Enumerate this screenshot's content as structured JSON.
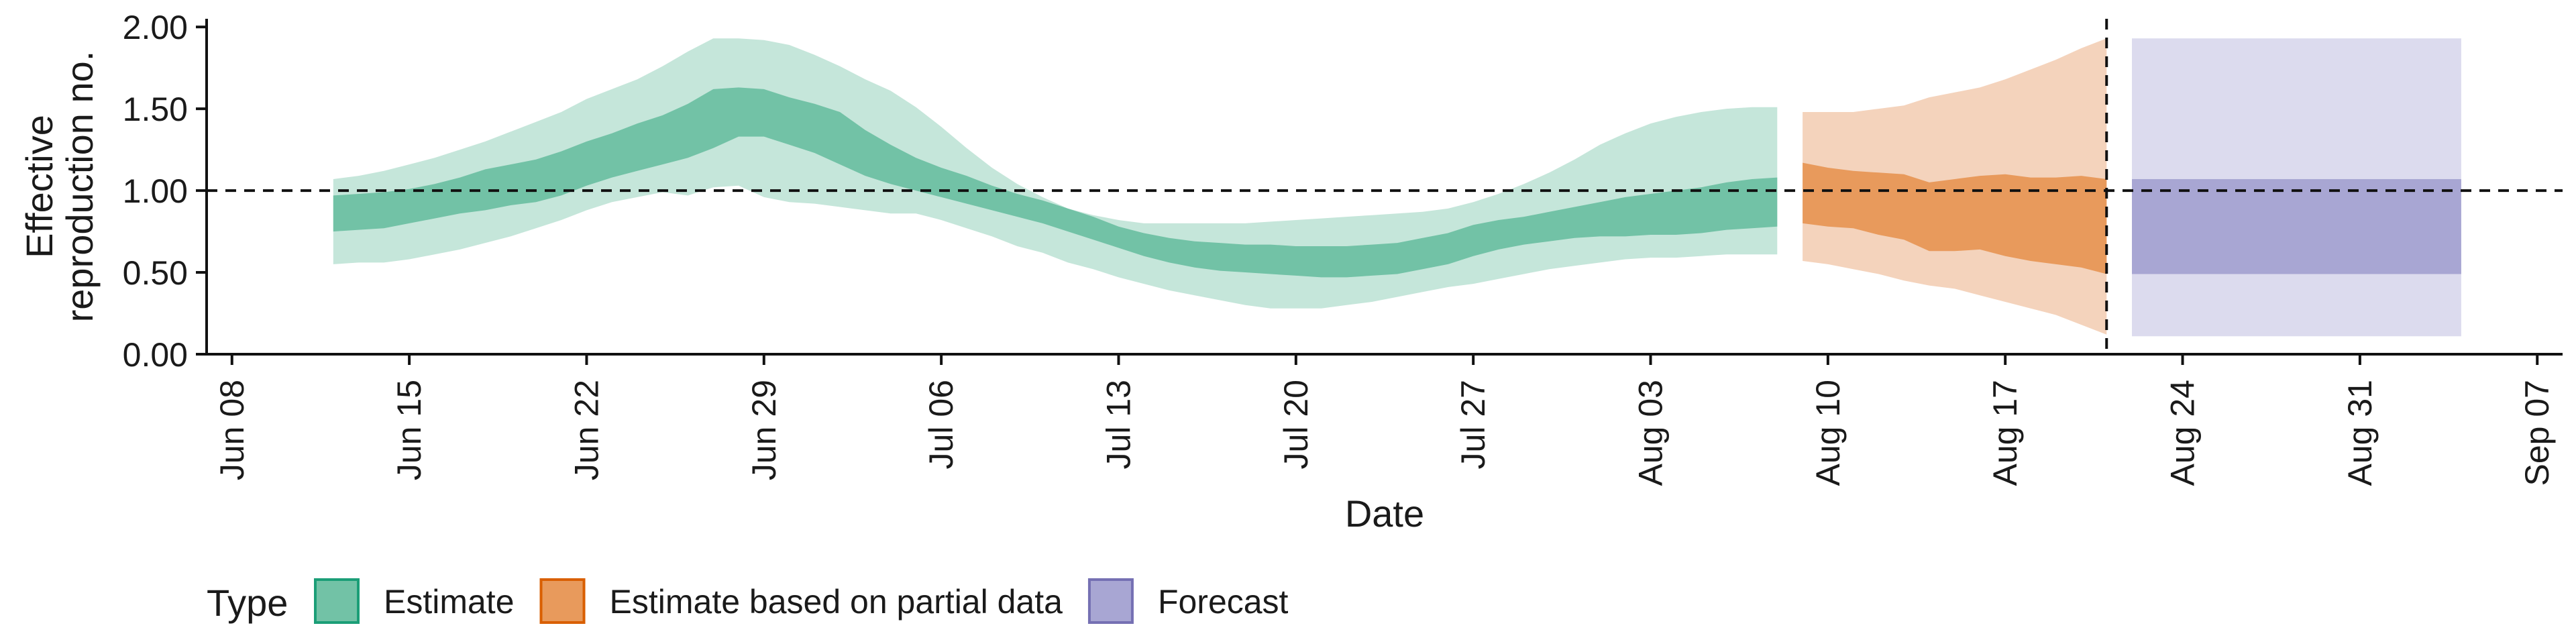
{
  "chart_data": {
    "type": "area",
    "title": "",
    "xlabel": "Date",
    "ylabel_lines": [
      "Effective",
      "reproduction no."
    ],
    "ylim": [
      0,
      2.05
    ],
    "xlim": [
      "2020-06-07",
      "2020-09-08"
    ],
    "x_ticks": [
      "2020-06-08",
      "2020-06-15",
      "2020-06-22",
      "2020-06-29",
      "2020-07-06",
      "2020-07-13",
      "2020-07-20",
      "2020-07-27",
      "2020-08-03",
      "2020-08-10",
      "2020-08-17",
      "2020-08-24",
      "2020-08-31",
      "2020-09-07"
    ],
    "x_tick_labels": [
      "Jun 08",
      "Jun 15",
      "Jun 22",
      "Jun 29",
      "Jul 06",
      "Jul 13",
      "Jul 20",
      "Jul 27",
      "Aug 03",
      "Aug 10",
      "Aug 17",
      "Aug 24",
      "Aug 31",
      "Sep 07"
    ],
    "y_ticks": [
      0,
      0.5,
      1,
      1.5,
      2
    ],
    "y_tick_labels": [
      "0.00",
      "0.50",
      "1.00",
      "1.50",
      "2.00"
    ],
    "reference_line_y": 1.0,
    "reference_line_x": "2020-08-21",
    "legend": {
      "title": "Type",
      "position": "bottom",
      "items": [
        {
          "label": "Estimate",
          "fill": "#72c2a6",
          "stroke": "#1b9e77"
        },
        {
          "label": "Estimate based on partial data",
          "fill": "#e89a5c",
          "stroke": "#d95f02"
        },
        {
          "label": "Forecast",
          "fill": "#a8a6d3",
          "stroke": "#7570b3"
        }
      ]
    },
    "series": [
      {
        "name": "Estimate",
        "outer_color": "#c5e6da",
        "inner_color": "#72c2a6",
        "x": [
          "2020-06-12",
          "2020-06-13",
          "2020-06-14",
          "2020-06-15",
          "2020-06-16",
          "2020-06-17",
          "2020-06-18",
          "2020-06-19",
          "2020-06-20",
          "2020-06-21",
          "2020-06-22",
          "2020-06-23",
          "2020-06-24",
          "2020-06-25",
          "2020-06-26",
          "2020-06-27",
          "2020-06-28",
          "2020-06-29",
          "2020-06-30",
          "2020-07-01",
          "2020-07-02",
          "2020-07-03",
          "2020-07-04",
          "2020-07-05",
          "2020-07-06",
          "2020-07-07",
          "2020-07-08",
          "2020-07-09",
          "2020-07-10",
          "2020-07-11",
          "2020-07-12",
          "2020-07-13",
          "2020-07-14",
          "2020-07-15",
          "2020-07-16",
          "2020-07-17",
          "2020-07-18",
          "2020-07-19",
          "2020-07-20",
          "2020-07-21",
          "2020-07-22",
          "2020-07-23",
          "2020-07-24",
          "2020-07-25",
          "2020-07-26",
          "2020-07-27",
          "2020-07-28",
          "2020-07-29",
          "2020-07-30",
          "2020-07-31",
          "2020-08-01",
          "2020-08-02",
          "2020-08-03",
          "2020-08-04",
          "2020-08-05",
          "2020-08-06",
          "2020-08-07",
          "2020-08-08"
        ],
        "lower90": [
          0.55,
          0.56,
          0.56,
          0.58,
          0.61,
          0.64,
          0.68,
          0.72,
          0.77,
          0.82,
          0.88,
          0.93,
          0.96,
          0.99,
          0.97,
          1.02,
          1.03,
          0.96,
          0.93,
          0.92,
          0.9,
          0.88,
          0.86,
          0.86,
          0.82,
          0.77,
          0.72,
          0.66,
          0.62,
          0.56,
          0.52,
          0.47,
          0.43,
          0.39,
          0.36,
          0.33,
          0.3,
          0.28,
          0.28,
          0.28,
          0.3,
          0.32,
          0.35,
          0.38,
          0.41,
          0.43,
          0.46,
          0.49,
          0.52,
          0.54,
          0.56,
          0.58,
          0.59,
          0.59,
          0.6,
          0.61,
          0.61,
          0.61
        ],
        "lower50": [
          0.75,
          0.76,
          0.77,
          0.8,
          0.83,
          0.86,
          0.88,
          0.91,
          0.93,
          0.97,
          1.03,
          1.08,
          1.12,
          1.16,
          1.2,
          1.26,
          1.33,
          1.33,
          1.28,
          1.23,
          1.16,
          1.09,
          1.04,
          1.0,
          0.96,
          0.92,
          0.88,
          0.84,
          0.8,
          0.75,
          0.7,
          0.65,
          0.6,
          0.56,
          0.53,
          0.51,
          0.5,
          0.49,
          0.48,
          0.47,
          0.47,
          0.48,
          0.49,
          0.52,
          0.55,
          0.6,
          0.64,
          0.67,
          0.69,
          0.71,
          0.72,
          0.72,
          0.73,
          0.73,
          0.74,
          0.76,
          0.77,
          0.78
        ],
        "upper50": [
          0.97,
          0.98,
          0.99,
          1.01,
          1.04,
          1.08,
          1.13,
          1.16,
          1.19,
          1.24,
          1.3,
          1.35,
          1.41,
          1.46,
          1.53,
          1.62,
          1.63,
          1.62,
          1.57,
          1.53,
          1.48,
          1.37,
          1.28,
          1.2,
          1.14,
          1.09,
          1.03,
          0.98,
          0.94,
          0.89,
          0.84,
          0.78,
          0.74,
          0.71,
          0.69,
          0.68,
          0.67,
          0.67,
          0.66,
          0.66,
          0.66,
          0.67,
          0.68,
          0.71,
          0.74,
          0.79,
          0.82,
          0.84,
          0.87,
          0.9,
          0.93,
          0.96,
          0.98,
          1.0,
          1.02,
          1.05,
          1.07,
          1.08
        ],
        "upper90": [
          1.07,
          1.09,
          1.12,
          1.16,
          1.2,
          1.25,
          1.3,
          1.36,
          1.42,
          1.48,
          1.56,
          1.62,
          1.68,
          1.76,
          1.85,
          1.93,
          1.93,
          1.92,
          1.89,
          1.83,
          1.76,
          1.68,
          1.61,
          1.51,
          1.39,
          1.26,
          1.14,
          1.04,
          0.96,
          0.89,
          0.85,
          0.82,
          0.8,
          0.8,
          0.8,
          0.8,
          0.8,
          0.81,
          0.82,
          0.83,
          0.84,
          0.85,
          0.86,
          0.87,
          0.89,
          0.93,
          0.98,
          1.04,
          1.11,
          1.19,
          1.28,
          1.35,
          1.41,
          1.45,
          1.48,
          1.5,
          1.51,
          1.51
        ]
      },
      {
        "name": "Estimate based on partial data",
        "outer_color": "#f4d3bc",
        "inner_color": "#e89a5c",
        "x": [
          "2020-08-09",
          "2020-08-10",
          "2020-08-11",
          "2020-08-12",
          "2020-08-13",
          "2020-08-14",
          "2020-08-15",
          "2020-08-16",
          "2020-08-17",
          "2020-08-18",
          "2020-08-19",
          "2020-08-20",
          "2020-08-21"
        ],
        "lower90": [
          0.57,
          0.55,
          0.52,
          0.49,
          0.45,
          0.42,
          0.4,
          0.36,
          0.32,
          0.28,
          0.24,
          0.18,
          0.12
        ],
        "lower50": [
          0.8,
          0.78,
          0.77,
          0.73,
          0.7,
          0.63,
          0.63,
          0.64,
          0.6,
          0.57,
          0.55,
          0.53,
          0.49
        ],
        "upper50": [
          1.17,
          1.14,
          1.12,
          1.11,
          1.1,
          1.05,
          1.07,
          1.09,
          1.1,
          1.08,
          1.08,
          1.09,
          1.07
        ],
        "upper90": [
          1.48,
          1.48,
          1.48,
          1.5,
          1.52,
          1.57,
          1.6,
          1.63,
          1.68,
          1.74,
          1.8,
          1.87,
          1.93
        ]
      },
      {
        "name": "Forecast",
        "outer_color": "#dcdbee",
        "inner_color": "#a8a6d3",
        "x": [
          "2020-08-22",
          "2020-09-04"
        ],
        "lower90": [
          0.11,
          0.11
        ],
        "lower50": [
          0.49,
          0.49
        ],
        "upper50": [
          1.07,
          1.07
        ],
        "upper90": [
          1.93,
          1.93
        ]
      }
    ]
  }
}
